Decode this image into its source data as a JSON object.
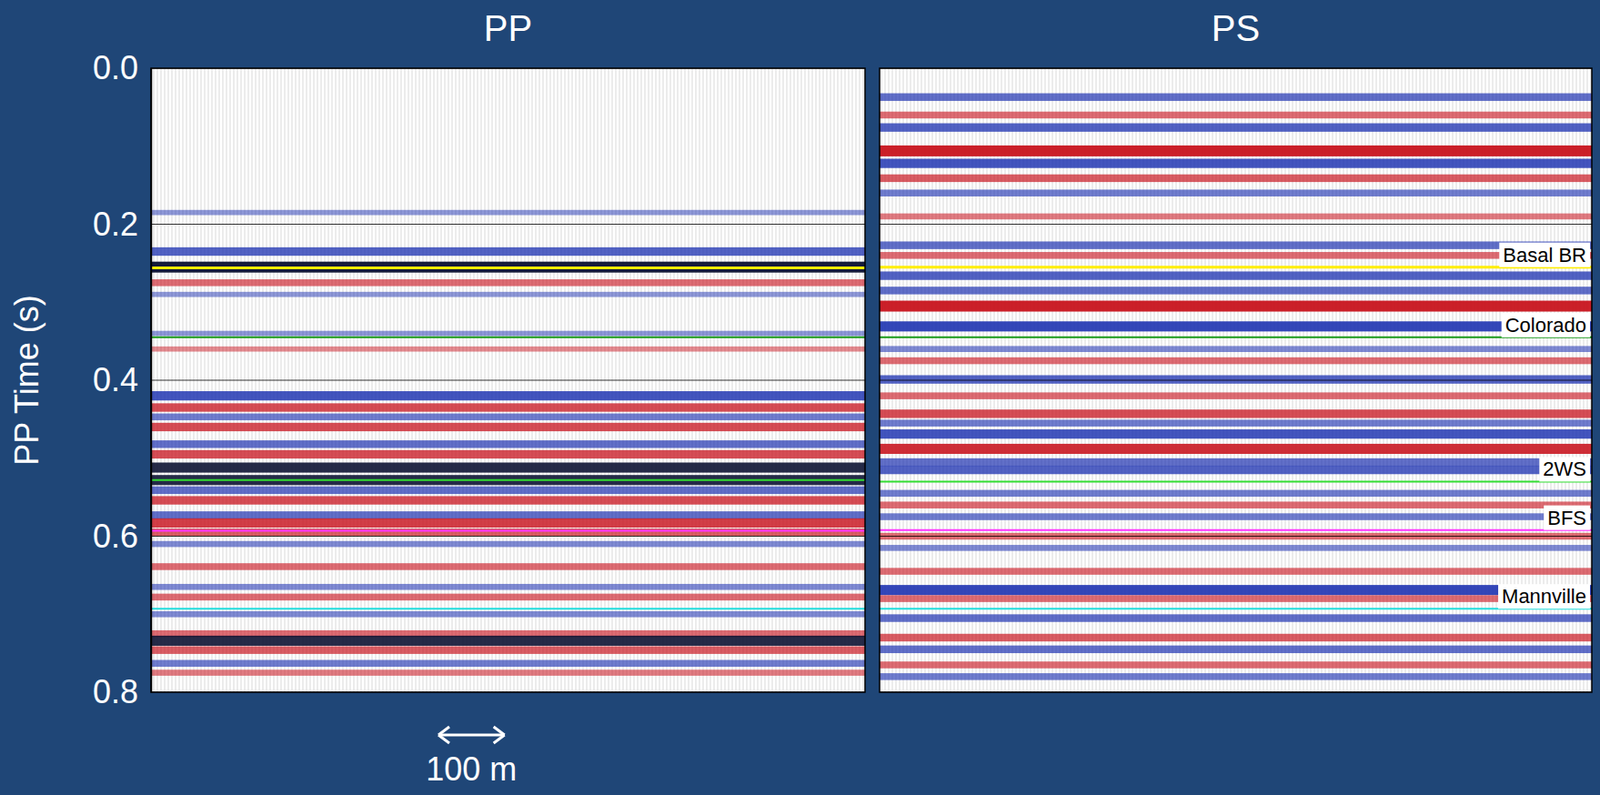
{
  "chart_data": {
    "type": "seismic",
    "y_label": "PP Time (s)",
    "ylim": [
      0,
      0.8
    ],
    "yticks": [
      {
        "value": 0,
        "label": "0.0"
      },
      0.2,
      0.4,
      0.6,
      0.8
    ],
    "grid": true,
    "tick_labels": "y",
    "panels": [
      {
        "title": "PP",
        "xlim": [
          0,
          1080
        ],
        "times": [
          0.185,
          0.235,
          0.255,
          0.275,
          0.29,
          0.34,
          0.36,
          0.42,
          0.435,
          0.447,
          0.46,
          0.482,
          0.495,
          0.512,
          0.528,
          0.541,
          0.554,
          0.573,
          0.583,
          0.595,
          0.61,
          0.639,
          0.665,
          0.678,
          0.7,
          0.725,
          0.734,
          0.746,
          0.763,
          0.775
        ],
        "colors": [
          "#1a2fb0",
          "#1a2fb0",
          "#0a1030",
          "#c8141e",
          "#1a2fb0",
          "#1a2fb0",
          "#c8141e",
          "#1a2fb0",
          "#c8141e",
          "#1a2fb0",
          "#c8141e",
          "#1a2fb0",
          "#c8141e",
          "#0a1030",
          "#0a1030",
          "#1a2fb0",
          "#c8141e",
          "#1a2fb0",
          "#c8141e",
          "#c8141e",
          "#1a2fb0",
          "#c8141e",
          "#1a2fb0",
          "#c8141e",
          "#1a2fb0",
          "#c8141e",
          "#0a1030",
          "#c8141e",
          "#1a2fb0",
          "#c8141e"
        ],
        "amplitudes": [
          0.3,
          0.7,
          1.0,
          0.5,
          0.3,
          0.3,
          0.3,
          0.8,
          0.7,
          0.5,
          0.7,
          0.6,
          0.7,
          0.9,
          0.9,
          0.6,
          0.7,
          0.6,
          0.8,
          0.6,
          0.4,
          0.5,
          0.4,
          0.5,
          0.4,
          0.5,
          0.9,
          0.6,
          0.5,
          0.4
        ]
      },
      {
        "title": "PS",
        "xlim": [
          0,
          1080
        ],
        "times": [
          0.037,
          0.06,
          0.076,
          0.106,
          0.122,
          0.141,
          0.16,
          0.19,
          0.227,
          0.24,
          0.266,
          0.285,
          0.305,
          0.331,
          0.36,
          0.375,
          0.399,
          0.42,
          0.443,
          0.455,
          0.469,
          0.488,
          0.505,
          0.515,
          0.545,
          0.56,
          0.575,
          0.6,
          0.615,
          0.645,
          0.669,
          0.68,
          0.705,
          0.73,
          0.745,
          0.765,
          0.78
        ],
        "colors": [
          "#1a2fb0",
          "#c8141e",
          "#1a2fb0",
          "#c8141e",
          "#1a2fb0",
          "#c8141e",
          "#1a2fb0",
          "#c8141e",
          "#1a2fb0",
          "#c8141e",
          "#1a2fb0",
          "#1a2fb0",
          "#c8141e",
          "#1a2fb0",
          "#1a2fb0",
          "#c8141e",
          "#1a2fb0",
          "#c8141e",
          "#c8141e",
          "#1a2fb0",
          "#1a2fb0",
          "#c8141e",
          "#1a2fb0",
          "#1a2fb0",
          "#1a2fb0",
          "#c8141e",
          "#1a2fb0",
          "#c8141e",
          "#1a2fb0",
          "#c8141e",
          "#1a2fb0",
          "#c8141e",
          "#1a2fb0",
          "#c8141e",
          "#1a2fb0",
          "#c8141e",
          "#1a2fb0"
        ],
        "amplitudes": [
          0.6,
          0.5,
          0.7,
          1.0,
          0.8,
          0.6,
          0.5,
          0.4,
          0.6,
          0.5,
          0.7,
          0.6,
          1.0,
          0.9,
          0.4,
          0.5,
          0.7,
          0.5,
          0.7,
          0.5,
          0.8,
          0.9,
          0.6,
          0.7,
          0.5,
          0.5,
          0.5,
          0.5,
          0.4,
          0.5,
          0.9,
          0.5,
          0.6,
          0.6,
          0.6,
          0.5,
          0.5
        ]
      }
    ],
    "horizons": [
      {
        "name": "Basal BR",
        "color": "#ffee00",
        "pp_time": 0.256,
        "ps_time": 0.255
      },
      {
        "name": "Colorado",
        "color": "#1a9a1a",
        "pp_time": 0.345,
        "ps_time": 0.345
      },
      {
        "name": "2WS",
        "color": "#33dd33",
        "pp_time": 0.528,
        "ps_time": 0.53
      },
      {
        "name": "BFS",
        "color": "#ff33ff",
        "pp_time": 0.593,
        "ps_time": 0.592
      },
      {
        "name": "Mannville",
        "color": "#22dddd",
        "pp_time": 0.693,
        "ps_time": 0.693
      }
    ],
    "scale_bar": {
      "label": "100 m",
      "length": 100
    }
  }
}
